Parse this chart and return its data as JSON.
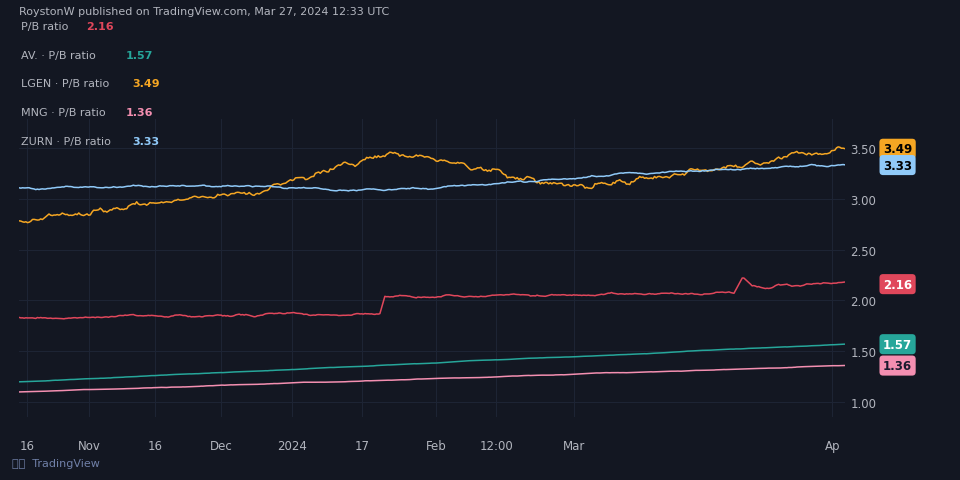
{
  "title": "RoystonW published on TradingView.com, Mar 27, 2024 12:33 UTC",
  "background_color": "#131722",
  "plot_bg_color": "#131722",
  "grid_color": "#1e2535",
  "text_color": "#b2b5be",
  "series": [
    {
      "name": "P/B ratio",
      "color": "#e0475b",
      "final_value": 2.16,
      "label_bg": "#e0475b",
      "label_fg": "#ffffff"
    },
    {
      "name": "AV. · P/B ratio",
      "color": "#26a69a",
      "final_value": 1.57,
      "label_bg": "#26a69a",
      "label_fg": "#ffffff"
    },
    {
      "name": "LGEN · P/B ratio",
      "color": "#f5a623",
      "final_value": 3.49,
      "label_bg": "#f5a623",
      "label_fg": "#000000"
    },
    {
      "name": "MNG · P/B ratio",
      "color": "#f48fb1",
      "final_value": 1.36,
      "label_bg": "#f48fb1",
      "label_fg": "#1a1a2e"
    },
    {
      "name": "ZURN · P/B ratio",
      "color": "#90caf9",
      "final_value": 3.33,
      "label_bg": "#90caf9",
      "label_fg": "#000000"
    }
  ],
  "ylim": [
    0.85,
    3.78
  ],
  "yticks": [
    1.0,
    1.5,
    2.0,
    2.5,
    3.0,
    3.5
  ],
  "x_tick_positions": [
    0.01,
    0.085,
    0.165,
    0.245,
    0.33,
    0.415,
    0.505,
    0.578,
    0.672,
    0.985
  ],
  "x_tick_labels": [
    "16",
    "Nov",
    "16",
    "Dec",
    "2024",
    "17",
    "Feb",
    "12:00",
    "Mar",
    "Ap"
  ],
  "num_points": 500,
  "tradingview_logo": "Ƿ TradingView"
}
